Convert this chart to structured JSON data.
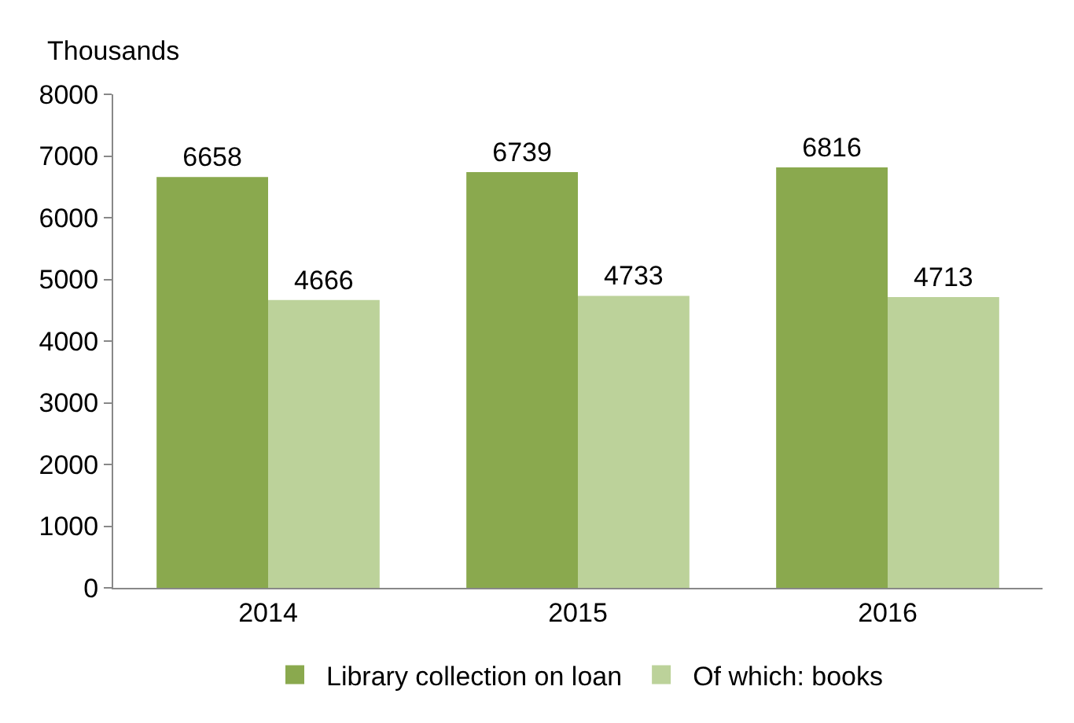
{
  "chart_data": {
    "type": "bar",
    "ylabel": "Thousands",
    "categories": [
      "2014",
      "2015",
      "2016"
    ],
    "series": [
      {
        "name": "Library collection on loan",
        "color": "#8aa94e",
        "values": [
          6658,
          6739,
          6816
        ]
      },
      {
        "name": "Of which: books",
        "color": "#bcd29a",
        "values": [
          4666,
          4733,
          4713
        ]
      }
    ],
    "ylim": [
      0,
      8000
    ],
    "yticks": [
      0,
      1000,
      2000,
      3000,
      4000,
      5000,
      6000,
      7000,
      8000
    ],
    "grid": false,
    "legend": "bottom",
    "data_labels": true
  }
}
